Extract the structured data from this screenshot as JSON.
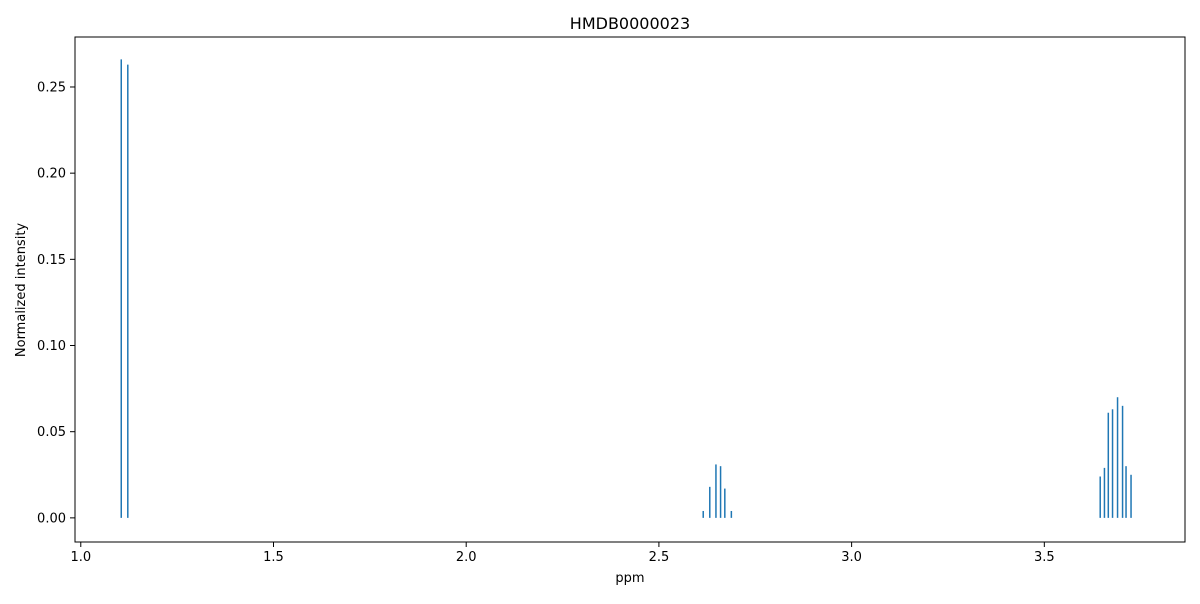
{
  "chart_data": {
    "type": "bar",
    "title": "HMDB0000023",
    "xlabel": "ppm",
    "ylabel": "Normalized intensity",
    "xlim": [
      0.985,
      3.865
    ],
    "ylim": [
      -0.014,
      0.279
    ],
    "grid": false,
    "legend": "none",
    "series_color": "#1f77b4",
    "x_ticks": [
      {
        "value": 1.0,
        "label": "1.0"
      },
      {
        "value": 1.5,
        "label": "1.5"
      },
      {
        "value": 2.0,
        "label": "2.0"
      },
      {
        "value": 2.5,
        "label": "2.5"
      },
      {
        "value": 3.0,
        "label": "3.0"
      },
      {
        "value": 3.5,
        "label": "3.5"
      }
    ],
    "y_ticks": [
      {
        "value": 0.0,
        "label": "0.00"
      },
      {
        "value": 0.05,
        "label": "0.05"
      },
      {
        "value": 0.1,
        "label": "0.10"
      },
      {
        "value": 0.15,
        "label": "0.15"
      },
      {
        "value": 0.2,
        "label": "0.20"
      },
      {
        "value": 0.25,
        "label": "0.25"
      }
    ],
    "peaks": [
      {
        "x": 1.105,
        "y": 0.266
      },
      {
        "x": 1.122,
        "y": 0.263
      },
      {
        "x": 2.615,
        "y": 0.004
      },
      {
        "x": 2.632,
        "y": 0.018
      },
      {
        "x": 2.648,
        "y": 0.031
      },
      {
        "x": 2.66,
        "y": 0.03
      },
      {
        "x": 2.671,
        "y": 0.017
      },
      {
        "x": 2.688,
        "y": 0.004
      },
      {
        "x": 3.645,
        "y": 0.024
      },
      {
        "x": 3.656,
        "y": 0.029
      },
      {
        "x": 3.666,
        "y": 0.061
      },
      {
        "x": 3.677,
        "y": 0.063
      },
      {
        "x": 3.69,
        "y": 0.07
      },
      {
        "x": 3.703,
        "y": 0.065
      },
      {
        "x": 3.712,
        "y": 0.03
      },
      {
        "x": 3.725,
        "y": 0.025
      }
    ]
  }
}
